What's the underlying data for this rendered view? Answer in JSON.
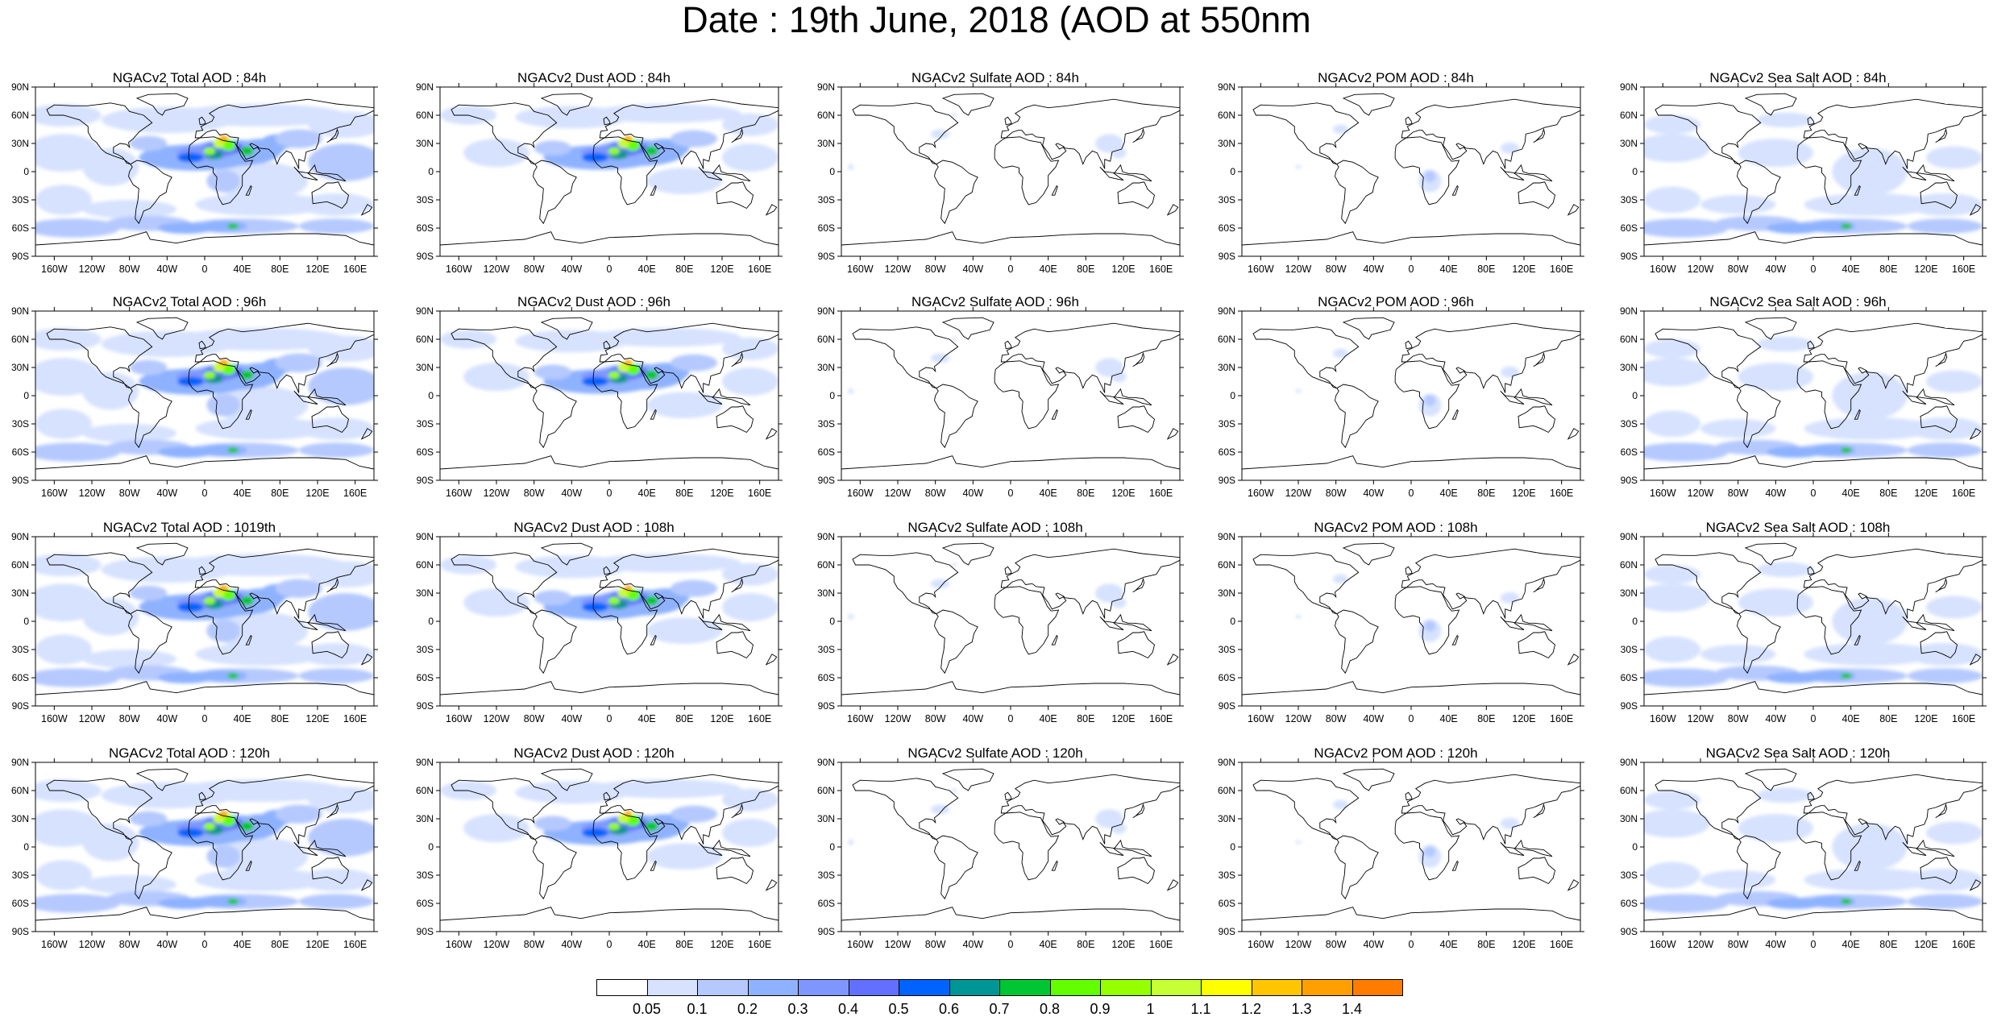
{
  "figure_title": "Date : 19th June, 2018 (AOD at 550nm",
  "lat_ticks": [
    "90N",
    "60N",
    "30N",
    "0",
    "30S",
    "60S",
    "90S"
  ],
  "lon_ticks": [
    "160W",
    "120W",
    "80W",
    "40W",
    "0",
    "40E",
    "80E",
    "120E",
    "160E"
  ],
  "panels": [
    {
      "title": "NGACv2 Total AOD : 84h",
      "species": "total"
    },
    {
      "title": "NGACv2 Dust AOD : 84h",
      "species": "dust"
    },
    {
      "title": "NGACv2 Sulfate AOD : 84h",
      "species": "sulfate"
    },
    {
      "title": "NGACv2 POM AOD : 84h",
      "species": "pom"
    },
    {
      "title": "NGACv2 Sea Salt AOD : 84h",
      "species": "seasalt"
    },
    {
      "title": "NGACv2 Total AOD : 96h",
      "species": "total"
    },
    {
      "title": "NGACv2 Dust AOD : 96h",
      "species": "dust"
    },
    {
      "title": "NGACv2 Sulfate AOD : 96h",
      "species": "sulfate"
    },
    {
      "title": "NGACv2 POM AOD : 96h",
      "species": "pom"
    },
    {
      "title": "NGACv2 Sea Salt AOD : 96h",
      "species": "seasalt"
    },
    {
      "title": "NGACv2 Total AOD : 1019th",
      "species": "total"
    },
    {
      "title": "NGACv2 Dust AOD : 108h",
      "species": "dust"
    },
    {
      "title": "NGACv2 Sulfate AOD : 108h",
      "species": "sulfate"
    },
    {
      "title": "NGACv2 POM AOD : 108h",
      "species": "pom"
    },
    {
      "title": "NGACv2 Sea Salt AOD : 108h",
      "species": "seasalt"
    },
    {
      "title": "NGACv2 Total AOD : 120h",
      "species": "total"
    },
    {
      "title": "NGACv2 Dust AOD : 120h",
      "species": "dust"
    },
    {
      "title": "NGACv2 Sulfate AOD : 120h",
      "species": "sulfate"
    },
    {
      "title": "NGACv2 POM AOD : 120h",
      "species": "pom"
    },
    {
      "title": "NGACv2 Sea Salt  AOD : 120h",
      "species": "seasalt"
    }
  ],
  "colorbar": {
    "colors": [
      "#ffffff",
      "#d6e2ff",
      "#b5c9ff",
      "#8eb2ff",
      "#7f96ff",
      "#6370ff",
      "#0063ff",
      "#009696",
      "#00c633",
      "#63ff00",
      "#96ff00",
      "#c6ff33",
      "#ffff00",
      "#ffc600",
      "#ffa000",
      "#ff7c00",
      "#ff1900"
    ],
    "labels": [
      "0.05",
      "0.1",
      "0.2",
      "0.3",
      "0.4",
      "0.5",
      "0.6",
      "0.7",
      "0.8",
      "0.9",
      "1",
      "1.1",
      "1.2",
      "1.3",
      "1.4"
    ]
  }
}
